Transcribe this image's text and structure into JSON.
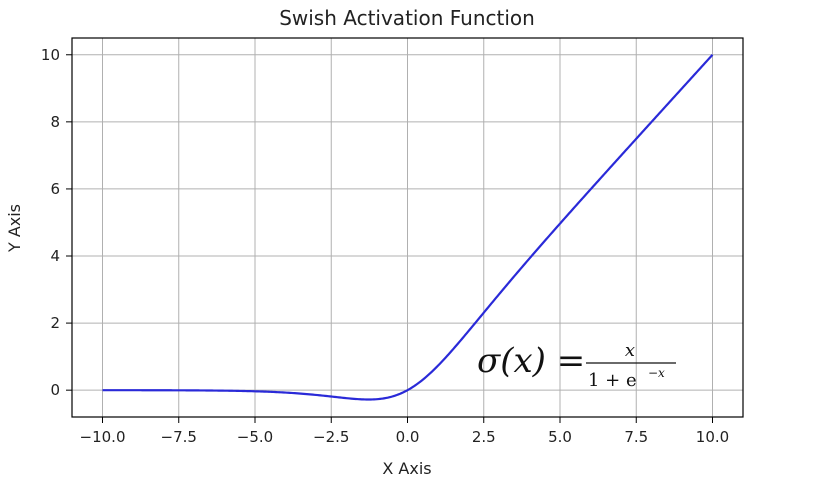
{
  "chart_data": {
    "type": "line",
    "title": "Swish Activation Function",
    "xlabel": "X Axis",
    "ylabel": "Y Axis",
    "xlim": [
      -11,
      11
    ],
    "ylim": [
      -0.8,
      10.5
    ],
    "xticks": [
      -10.0,
      -7.5,
      -5.0,
      -2.5,
      0.0,
      2.5,
      5.0,
      7.5,
      10.0
    ],
    "xtick_labels": [
      "−10.0",
      "−7.5",
      "−5.0",
      "−2.5",
      "0.0",
      "2.5",
      "5.0",
      "7.5",
      "10.0"
    ],
    "yticks": [
      0,
      2,
      4,
      6,
      8,
      10
    ],
    "ytick_labels": [
      "0",
      "2",
      "4",
      "6",
      "8",
      "10"
    ],
    "grid": true,
    "series": [
      {
        "color": "#2a2ad8",
        "x": [
          -10,
          -9,
          -8,
          -7,
          -6,
          -5,
          -4,
          -3,
          -2.5,
          -2,
          -1.5,
          -1.28,
          -1,
          -0.5,
          0,
          0.5,
          1,
          1.5,
          2,
          2.5,
          3,
          4,
          5,
          6,
          7,
          8,
          9,
          10
        ],
        "y": [
          -0.0005,
          -0.0011,
          -0.0027,
          -0.0064,
          -0.0148,
          -0.0335,
          -0.0719,
          -0.1423,
          -0.1896,
          -0.2384,
          -0.2736,
          -0.2785,
          -0.2689,
          -0.1888,
          0,
          0.3112,
          0.7311,
          1.2264,
          1.7616,
          2.3104,
          2.8577,
          3.9281,
          4.9665,
          5.9852,
          6.9936,
          7.9973,
          8.9989,
          9.9995
        ]
      }
    ],
    "annotation": {
      "lhs": "σ(x) = ",
      "numerator": "x",
      "denominator_base": "1 + e",
      "denominator_exp": "−x"
    }
  }
}
